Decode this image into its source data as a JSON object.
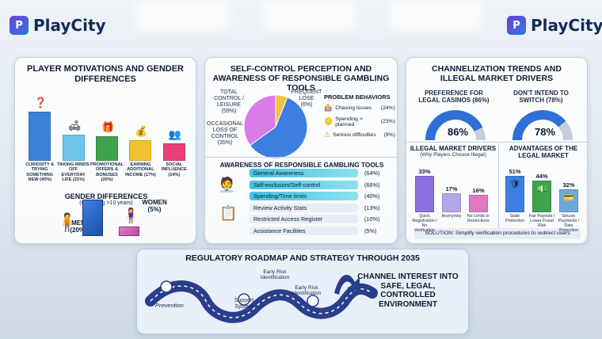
{
  "brand": {
    "name": "PlayCity",
    "badge": "P"
  },
  "panel1": {
    "title": "PLAYER MOTIVATIONS AND GENDER DIFFERENCES",
    "bars": [
      {
        "label": "CURIOSITY & TRYING SOMETHING NEW (40%)",
        "value": 40,
        "color": "#3b83d6",
        "icon": "question-person-icon"
      },
      {
        "label": "TAKING MINDS OFF EVERYDAY LIFE (21%)",
        "value": 21,
        "color": "#6fc4e8",
        "icon": "relaxing-person-icon"
      },
      {
        "label": "PROMOTIONAL OFFERS & BONUSES (20%)",
        "value": 20,
        "color": "#3fa34d",
        "icon": "gift-icon"
      },
      {
        "label": "EARNING ADDITIONAL INCOME (17%)",
        "value": 17,
        "color": "#f2c12e",
        "icon": "money-bag-icon"
      },
      {
        "label": "SOCIAL INFLUENCE (14%)",
        "value": 14,
        "color": "#e93f7a",
        "icon": "group-icon"
      }
    ],
    "gender_title": "GENDER DIFFERENCES",
    "gender_subtitle": "(Gambling >10 years)",
    "men_label": "MEN",
    "men_value": "(20%)",
    "women_label": "WOMEN",
    "women_value": "(5%)"
  },
  "panel2": {
    "title": "SELF-CONTROL PERCEPTION AND AWARENESS OF RESPONSIBLE GAMBLING TOOLS",
    "pie": [
      {
        "label": "TOTAL CONTROL / LEISURE",
        "value_text": "(59%)",
        "value": 59,
        "color": "#3d7fe0"
      },
      {
        "label": "OCCASIONAL LOSS OF CONTROL",
        "value_text": "(35%)",
        "value": 35,
        "color": "#d97be8"
      },
      {
        "label": "FREQUENT LOSE",
        "value_text": "(6%)",
        "value": 6,
        "color": "#f5c342"
      }
    ],
    "problem_title": "PROBLEM BEHAVIORS",
    "problems": [
      {
        "label": "Chasing losses",
        "value": "(24%)"
      },
      {
        "label": "Spending > planned",
        "value": "(23%)"
      },
      {
        "label": "Serious difficulties",
        "value": "(9%)"
      }
    ],
    "awareness_title": "AWARENESS OF RESPONSIBLE GAMBLING TOOLS",
    "tools": [
      {
        "label": "General Awareness",
        "value": "(64%)",
        "highlight": true
      },
      {
        "label": "Self-exclusion/Self-control",
        "value": "(66%)",
        "highlight": true
      },
      {
        "label": "Spending/Time limits",
        "value": "(40%)",
        "highlight": true
      },
      {
        "label": "Review Activity Stats",
        "value": "(13%)",
        "highlight": false
      },
      {
        "label": "Restricted Access Register",
        "value": "(10%)",
        "highlight": false
      },
      {
        "label": "Assistance Facilities",
        "value": "(5%)",
        "highlight": false
      }
    ]
  },
  "panel3": {
    "title": "CHANNELIZATION TRENDS AND ILLEGAL MARKET DRIVERS",
    "gauge1_label": "PREFERENCE FOR LEGAL CASINOS (86%)",
    "gauge1_value_text": "86%",
    "gauge1_value": 86,
    "gauge2_label": "DON'T INTEND TO SWITCH (78%)",
    "gauge2_value_text": "78%",
    "gauge2_value": 78,
    "illegal_title": "ILLEGAL MARKET DRIVERS",
    "illegal_subtitle": "(Why Players Choose Illegal)",
    "illegal_bars": [
      {
        "value_text": "33%",
        "value": 33,
        "label": "Quick Registration / No Verification",
        "color": "#8b6fe0"
      },
      {
        "value_text": "17%",
        "value": 17,
        "label": "Anonymity",
        "color": "#b3a6e8"
      },
      {
        "value_text": "16%",
        "value": 16,
        "label": "No Limits or Restrictions",
        "color": "#e07ac4"
      }
    ],
    "advantages_title": "ADVANTAGES OF THE LEGAL MARKET",
    "advantages": [
      {
        "value_text": "51%",
        "value": 51,
        "label": "State Protection",
        "color": "#3d7fe0",
        "icon": "shield-icon"
      },
      {
        "value_text": "44%",
        "value": 44,
        "label": "Fair Payouts / Lower Fraud Risk",
        "color": "#3fa34d",
        "icon": "cash-icon"
      },
      {
        "value_text": "32%",
        "value": 32,
        "label": "Secure Payments / Data Protection",
        "color": "#6fa8e0",
        "icon": "card-icon"
      }
    ],
    "solution": "SOLUTION: Simplify verification procedures to redirect users"
  },
  "roadmap": {
    "title": "REGULATORY ROADMAP AND STRATEGY THROUGH 2035",
    "stages": [
      {
        "label": "Prevention"
      },
      {
        "label": "Support System"
      },
      {
        "label": "Early Risk Identification"
      },
      {
        "label": "Early Risk Identification"
      }
    ],
    "goal": "CHANNEL INTEREST INTO SAFE, LEGAL, CONTROLLED ENVIRONMENT"
  }
}
